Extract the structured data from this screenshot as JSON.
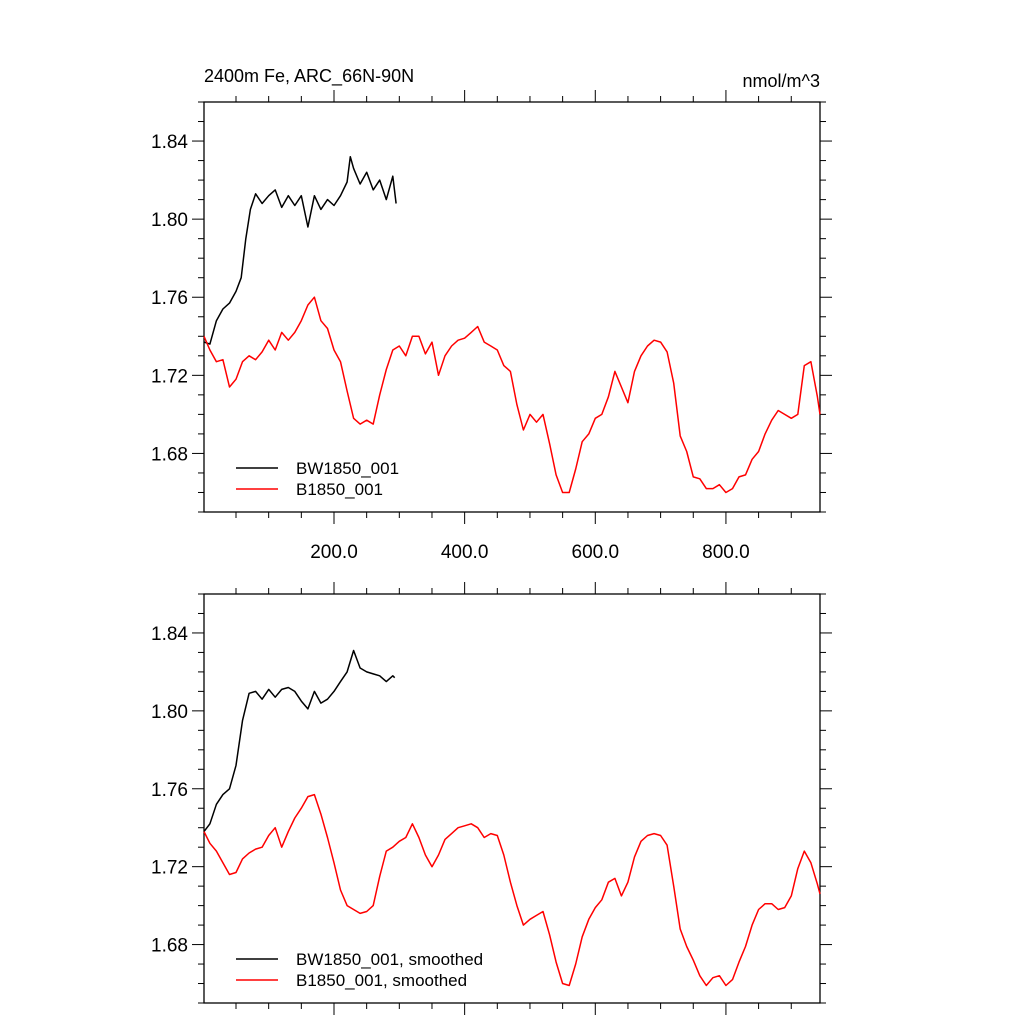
{
  "figure": {
    "title_left": "2400m Fe, ARC_66N-90N",
    "title_right": "nmol/m^3"
  },
  "chart_data": [
    {
      "type": "line",
      "panel": "top",
      "title": "2400m Fe, ARC_66N-90N",
      "unit": "nmol/m^3",
      "xlim": [
        1,
        944
      ],
      "ylim": [
        1.65,
        1.86
      ],
      "x_ticks": [
        200,
        400,
        600,
        800
      ],
      "x_tick_labels": [
        "200.0",
        "400.0",
        "600.0",
        "800.0"
      ],
      "y_ticks": [
        1.68,
        1.72,
        1.76,
        1.8,
        1.84
      ],
      "y_tick_labels": [
        "1.68",
        "1.72",
        "1.76",
        "1.80",
        "1.84"
      ],
      "grid": false,
      "legend_position": "bottom-left",
      "series": [
        {
          "name": "BW1850_001",
          "color": "#000000",
          "x": [
            1,
            10,
            20,
            30,
            40,
            50,
            58,
            65,
            72,
            80,
            90,
            100,
            110,
            120,
            130,
            140,
            150,
            160,
            170,
            180,
            190,
            200,
            210,
            220,
            225,
            230,
            240,
            250,
            260,
            270,
            280,
            290,
            295
          ],
          "y": [
            1.737,
            1.736,
            1.748,
            1.754,
            1.757,
            1.763,
            1.77,
            1.79,
            1.805,
            1.813,
            1.808,
            1.812,
            1.815,
            1.806,
            1.812,
            1.807,
            1.812,
            1.796,
            1.812,
            1.805,
            1.81,
            1.807,
            1.812,
            1.819,
            1.832,
            1.826,
            1.818,
            1.824,
            1.815,
            1.82,
            1.81,
            1.822,
            1.808
          ]
        },
        {
          "name": "B1850_001",
          "color": "#ff0000",
          "x": [
            1,
            10,
            20,
            30,
            40,
            50,
            60,
            70,
            80,
            90,
            100,
            110,
            120,
            130,
            140,
            150,
            160,
            170,
            180,
            190,
            200,
            210,
            220,
            230,
            240,
            250,
            260,
            270,
            280,
            290,
            300,
            310,
            320,
            330,
            340,
            350,
            360,
            370,
            380,
            390,
            400,
            410,
            420,
            430,
            440,
            450,
            460,
            470,
            480,
            490,
            500,
            510,
            520,
            530,
            540,
            550,
            560,
            570,
            580,
            590,
            600,
            610,
            620,
            630,
            640,
            650,
            660,
            670,
            680,
            690,
            700,
            710,
            720,
            730,
            740,
            750,
            760,
            770,
            780,
            790,
            800,
            810,
            820,
            830,
            840,
            850,
            860,
            870,
            880,
            890,
            900,
            910,
            920,
            930,
            940,
            944
          ],
          "y": [
            1.74,
            1.733,
            1.727,
            1.728,
            1.714,
            1.718,
            1.727,
            1.73,
            1.728,
            1.732,
            1.738,
            1.733,
            1.742,
            1.738,
            1.742,
            1.748,
            1.756,
            1.76,
            1.748,
            1.744,
            1.733,
            1.727,
            1.712,
            1.698,
            1.695,
            1.697,
            1.695,
            1.71,
            1.723,
            1.733,
            1.735,
            1.73,
            1.74,
            1.74,
            1.731,
            1.737,
            1.72,
            1.73,
            1.735,
            1.738,
            1.739,
            1.742,
            1.745,
            1.737,
            1.735,
            1.733,
            1.725,
            1.722,
            1.705,
            1.692,
            1.7,
            1.696,
            1.7,
            1.685,
            1.669,
            1.66,
            1.66,
            1.672,
            1.686,
            1.69,
            1.698,
            1.7,
            1.709,
            1.722,
            1.714,
            1.706,
            1.722,
            1.73,
            1.735,
            1.738,
            1.737,
            1.732,
            1.716,
            1.689,
            1.681,
            1.668,
            1.667,
            1.662,
            1.662,
            1.664,
            1.66,
            1.662,
            1.668,
            1.669,
            1.677,
            1.681,
            1.69,
            1.697,
            1.702,
            1.7,
            1.698,
            1.7,
            1.725,
            1.727,
            1.709,
            1.7
          ]
        }
      ]
    },
    {
      "type": "line",
      "panel": "bottom",
      "xlim": [
        1,
        944
      ],
      "ylim": [
        1.65,
        1.86
      ],
      "y_ticks": [
        1.68,
        1.72,
        1.76,
        1.8,
        1.84
      ],
      "y_tick_labels": [
        "1.68",
        "1.72",
        "1.76",
        "1.80",
        "1.84"
      ],
      "grid": false,
      "legend_position": "bottom-left",
      "series": [
        {
          "name": "BW1850_001, smoothed",
          "color": "#000000",
          "x": [
            1,
            10,
            20,
            30,
            40,
            50,
            60,
            70,
            80,
            90,
            100,
            110,
            120,
            130,
            140,
            150,
            160,
            170,
            180,
            190,
            200,
            210,
            220,
            230,
            240,
            250,
            260,
            270,
            280,
            290,
            293
          ],
          "y": [
            1.738,
            1.742,
            1.752,
            1.757,
            1.76,
            1.772,
            1.795,
            1.809,
            1.81,
            1.806,
            1.811,
            1.807,
            1.811,
            1.812,
            1.81,
            1.805,
            1.801,
            1.81,
            1.804,
            1.806,
            1.81,
            1.815,
            1.82,
            1.831,
            1.822,
            1.82,
            1.819,
            1.818,
            1.815,
            1.818,
            1.817
          ]
        },
        {
          "name": "B1850_001, smoothed",
          "color": "#ff0000",
          "x": [
            1,
            10,
            20,
            30,
            40,
            50,
            60,
            70,
            80,
            90,
            100,
            110,
            120,
            130,
            140,
            150,
            160,
            170,
            180,
            190,
            200,
            210,
            220,
            230,
            240,
            250,
            260,
            270,
            280,
            290,
            300,
            310,
            320,
            330,
            340,
            350,
            360,
            370,
            380,
            390,
            400,
            410,
            420,
            430,
            440,
            450,
            460,
            470,
            480,
            490,
            500,
            510,
            520,
            530,
            540,
            550,
            560,
            570,
            580,
            590,
            600,
            610,
            620,
            630,
            640,
            650,
            660,
            670,
            680,
            690,
            700,
            710,
            720,
            730,
            740,
            750,
            760,
            770,
            780,
            790,
            800,
            810,
            820,
            830,
            840,
            850,
            860,
            870,
            880,
            890,
            900,
            910,
            920,
            930,
            940,
            944
          ],
          "y": [
            1.738,
            1.732,
            1.728,
            1.722,
            1.716,
            1.717,
            1.724,
            1.727,
            1.729,
            1.73,
            1.736,
            1.74,
            1.73,
            1.738,
            1.745,
            1.75,
            1.756,
            1.757,
            1.747,
            1.735,
            1.722,
            1.708,
            1.7,
            1.698,
            1.696,
            1.697,
            1.7,
            1.715,
            1.728,
            1.73,
            1.733,
            1.735,
            1.742,
            1.735,
            1.726,
            1.72,
            1.726,
            1.734,
            1.737,
            1.74,
            1.741,
            1.742,
            1.74,
            1.735,
            1.737,
            1.736,
            1.726,
            1.712,
            1.7,
            1.69,
            1.693,
            1.695,
            1.697,
            1.685,
            1.671,
            1.66,
            1.659,
            1.67,
            1.684,
            1.693,
            1.699,
            1.703,
            1.712,
            1.714,
            1.705,
            1.712,
            1.725,
            1.733,
            1.736,
            1.737,
            1.736,
            1.731,
            1.71,
            1.688,
            1.679,
            1.672,
            1.664,
            1.659,
            1.663,
            1.664,
            1.659,
            1.662,
            1.671,
            1.679,
            1.69,
            1.698,
            1.701,
            1.701,
            1.698,
            1.699,
            1.705,
            1.719,
            1.728,
            1.722,
            1.711,
            1.706
          ]
        }
      ]
    }
  ]
}
